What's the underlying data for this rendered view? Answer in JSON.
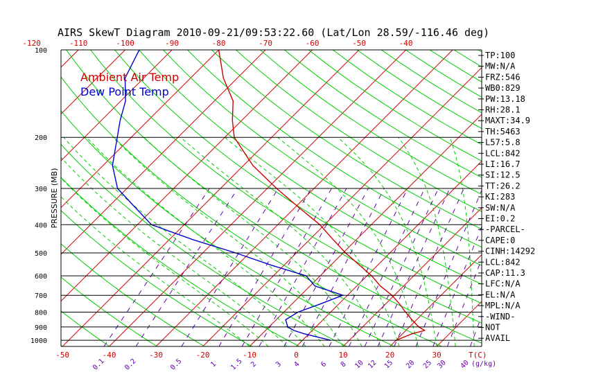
{
  "title": "AIRS SkewT Diagram 2010-09-21/09:53:22.60 (Lat/Lon 28.59/-116.46 deg)",
  "colors": {
    "ambient": "#cc0000",
    "dewpoint": "#0000cc",
    "isotherm": "#cc0000",
    "dry_adiabat": "#00cc00",
    "moist_adiabat": "#00cc00",
    "mixing_ratio": "#6600aa",
    "pressure_line": "#000000"
  },
  "chart_data": {
    "type": "line",
    "title": "AIRS SkewT Diagram 2010-09-21/09:53:22.60 (Lat/Lon 28.59/-116.46 deg)",
    "ylabel": "PRESSURE (MB)",
    "ylim": [
      1050,
      100
    ],
    "y_scale": "log",
    "pressure_ticks": [
      100,
      200,
      300,
      400,
      500,
      600,
      700,
      800,
      900,
      1000
    ],
    "bottom_temp_ticks": [
      -50,
      -40,
      -30,
      -20,
      -10,
      0,
      10,
      20,
      30
    ],
    "bottom_temp_axis_label": "T(C)",
    "top_temp_ticks": [
      -120,
      -110,
      -100,
      -90,
      -80,
      -70,
      -60,
      -50,
      -40
    ],
    "mixing_ratio_ticks": [
      "0.1",
      "0.2",
      "0.5",
      "1",
      "1.5",
      "2",
      "3",
      "4",
      "6",
      "8",
      "10",
      "12",
      "15",
      "20",
      "25",
      "30",
      "40"
    ],
    "mixing_ratio_axis_label": "(g/kg)",
    "series": [
      {
        "name": "Ambient Air Temp",
        "points": [
          {
            "p": 1000,
            "t": 20
          },
          {
            "p": 950,
            "t": 22
          },
          {
            "p": 925,
            "t": 24
          },
          {
            "p": 900,
            "t": 22
          },
          {
            "p": 850,
            "t": 19
          },
          {
            "p": 800,
            "t": 16
          },
          {
            "p": 750,
            "t": 13
          },
          {
            "p": 700,
            "t": 9.5
          },
          {
            "p": 650,
            "t": 5
          },
          {
            "p": 600,
            "t": 1
          },
          {
            "p": 550,
            "t": -4
          },
          {
            "p": 500,
            "t": -9.5
          },
          {
            "p": 450,
            "t": -15
          },
          {
            "p": 400,
            "t": -21
          },
          {
            "p": 350,
            "t": -29
          },
          {
            "p": 300,
            "t": -38
          },
          {
            "p": 250,
            "t": -48
          },
          {
            "p": 200,
            "t": -58
          },
          {
            "p": 175,
            "t": -62
          },
          {
            "p": 150,
            "t": -66
          },
          {
            "p": 125,
            "t": -73
          },
          {
            "p": 100,
            "t": -80
          }
        ]
      },
      {
        "name": "Dew Point Temp",
        "points": [
          {
            "p": 1000,
            "t": 6
          },
          {
            "p": 950,
            "t": -1
          },
          {
            "p": 925,
            "t": -4
          },
          {
            "p": 900,
            "t": -6
          },
          {
            "p": 850,
            "t": -8
          },
          {
            "p": 800,
            "t": -7
          },
          {
            "p": 750,
            "t": -4
          },
          {
            "p": 700,
            "t": -1
          },
          {
            "p": 650,
            "t": -9
          },
          {
            "p": 600,
            "t": -13
          },
          {
            "p": 550,
            "t": -23
          },
          {
            "p": 500,
            "t": -33
          },
          {
            "p": 450,
            "t": -45
          },
          {
            "p": 400,
            "t": -57
          },
          {
            "p": 350,
            "t": -64
          },
          {
            "p": 300,
            "t": -72
          },
          {
            "p": 250,
            "t": -78
          },
          {
            "p": 200,
            "t": -83
          },
          {
            "p": 175,
            "t": -86
          },
          {
            "p": 150,
            "t": -89
          },
          {
            "p": 125,
            "t": -94
          },
          {
            "p": 100,
            "t": -97
          }
        ]
      }
    ]
  },
  "indices": [
    "TP:100",
    "MW:N/A",
    "FRZ:546",
    "WB0:829",
    "PW:13.18",
    "RH:28.1",
    "MAXT:34.9",
    "TH:5463",
    "L57:5.8",
    "LCL:842",
    "LI:16.7",
    "SI:12.5",
    "TT:26.2",
    "KI:283",
    "SW:N/A",
    "EI:0.2",
    "-PARCEL-",
    "CAPE:0",
    "CINH:14292",
    "LCL:842",
    "CAP:11.3",
    "LFC:N/A",
    "EL:N/A",
    "MPL:N/A",
    "-WIND-",
    "NOT",
    "AVAIL"
  ]
}
